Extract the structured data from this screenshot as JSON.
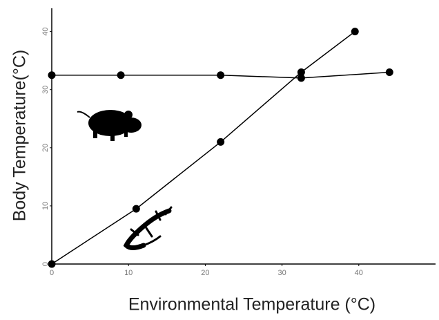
{
  "chart_data": {
    "type": "line",
    "x_label": "Environmental Temperature (°C)",
    "y_label": "Body Temperature(°C)",
    "series": [
      {
        "color": "#000000",
        "x": [
          0,
          9,
          22,
          32.5,
          44
        ],
        "values": [
          32.5,
          32.5,
          32.5,
          32,
          33
        ]
      },
      {
        "color": "#000000",
        "x": [
          0,
          11,
          22,
          32.5,
          39.5
        ],
        "values": [
          0,
          9.5,
          21,
          33,
          40
        ]
      }
    ],
    "xlim": [
      0,
      50
    ],
    "xticks": [
      0,
      10,
      20,
      30,
      40
    ],
    "ylim": [
      0,
      44
    ],
    "yticks": [
      0,
      10,
      20,
      30,
      40
    ]
  }
}
